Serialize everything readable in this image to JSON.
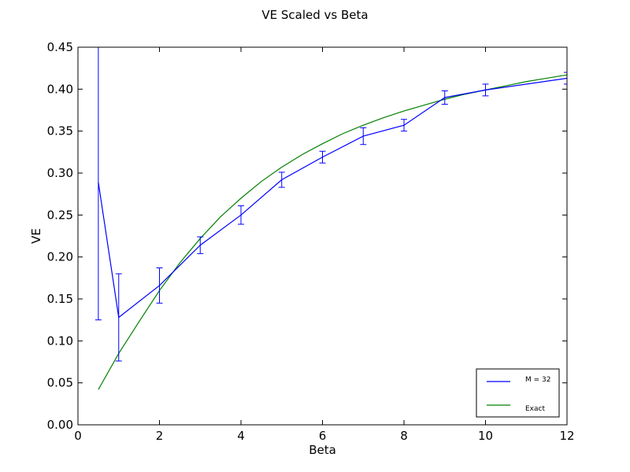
{
  "chart_data": {
    "type": "line",
    "title": "VE Scaled vs Beta",
    "xlabel": "Beta",
    "ylabel": "VE",
    "xlim": [
      0,
      12
    ],
    "ylim": [
      0,
      0.45
    ],
    "xticks": [
      0,
      2,
      4,
      6,
      8,
      10,
      12
    ],
    "xtick_labels": [
      "0",
      "2",
      "4",
      "6",
      "8",
      "10",
      "12"
    ],
    "yticks": [
      0,
      0.05,
      0.1,
      0.15,
      0.2,
      0.25,
      0.3,
      0.35,
      0.4,
      0.45
    ],
    "ytick_labels": [
      "0.00",
      "0.05",
      "0.10",
      "0.15",
      "0.20",
      "0.25",
      "0.30",
      "0.35",
      "0.40",
      "0.45"
    ],
    "grid": false,
    "legend_position": "lower-right",
    "series": [
      {
        "name": "M = 32",
        "color": "#0000ff",
        "x": [
          0.5,
          1,
          2,
          3,
          4,
          5,
          6,
          7,
          8,
          9,
          10,
          12
        ],
        "y": [
          0.289,
          0.128,
          0.166,
          0.214,
          0.25,
          0.292,
          0.319,
          0.344,
          0.357,
          0.39,
          0.399,
          0.413
        ],
        "err": [
          0.164,
          0.052,
          0.021,
          0.01,
          0.011,
          0.009,
          0.007,
          0.01,
          0.007,
          0.008,
          0.007,
          0.007
        ]
      },
      {
        "name": "Exact",
        "color": "#008000",
        "x": [
          0.5,
          1,
          1.5,
          2,
          2.5,
          3,
          3.5,
          4,
          4.5,
          5,
          5.5,
          6,
          6.5,
          7,
          7.5,
          8,
          8.5,
          9,
          9.5,
          10,
          10.5,
          11,
          11.5,
          12
        ],
        "y": [
          0.042,
          0.085,
          0.123,
          0.16,
          0.193,
          0.222,
          0.248,
          0.27,
          0.29,
          0.307,
          0.322,
          0.335,
          0.347,
          0.357,
          0.366,
          0.374,
          0.381,
          0.388,
          0.394,
          0.399,
          0.404,
          0.409,
          0.413,
          0.417
        ]
      }
    ]
  }
}
